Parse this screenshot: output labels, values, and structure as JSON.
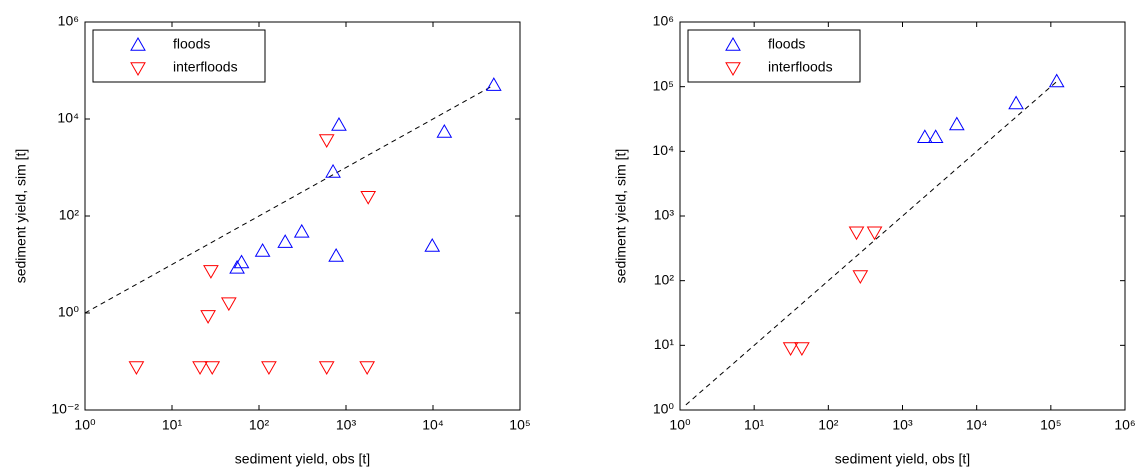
{
  "chart_data": [
    {
      "type": "scatter",
      "xlabel": "sediment yield, obs [t]",
      "ylabel": "sediment yield, sim [t]",
      "xscale": "log",
      "yscale": "log",
      "legend": "upper left",
      "xlim": [
        1,
        100000
      ],
      "ylim": [
        0.01,
        1000000
      ],
      "xticks": [
        {
          "value": 1,
          "label": "10⁰"
        },
        {
          "value": 10,
          "label": "10¹"
        },
        {
          "value": 100,
          "label": "10²"
        },
        {
          "value": 1000,
          "label": "10³"
        },
        {
          "value": 10000,
          "label": "10⁴"
        },
        {
          "value": 100000,
          "label": "10⁵"
        }
      ],
      "yticks": [
        {
          "value": 0.01,
          "label": "10⁻²"
        },
        {
          "value": 1,
          "label": "10⁰"
        },
        {
          "value": 100,
          "label": "10²"
        },
        {
          "value": 10000,
          "label": "10⁴"
        },
        {
          "value": 1000000,
          "label": "10⁶"
        }
      ],
      "series": [
        {
          "name": "floods",
          "color": "#0000ff",
          "marker": "triangle-up",
          "x": [
            50000,
            830,
            13500,
            710,
            310,
            200,
            110,
            770,
            9800,
            63,
            56
          ],
          "values": [
            50000,
            7500,
            5400,
            810,
            47,
            29,
            19,
            15,
            24,
            11,
            8.5
          ]
        },
        {
          "name": "interfloods",
          "color": "#ff0000",
          "marker": "triangle-down",
          "x": [
            600,
            1800,
            28,
            45,
            26,
            3.9,
            21,
            29,
            130,
            600,
            1750
          ],
          "values": [
            3700,
            250,
            7.4,
            1.6,
            0.87,
            0.077,
            0.077,
            0.077,
            0.077,
            0.077,
            0.077
          ]
        }
      ],
      "ref_line": {
        "x": [
          1,
          50000
        ],
        "y": [
          1,
          50000
        ]
      }
    },
    {
      "type": "scatter",
      "xlabel": "sediment yield, obs [t]",
      "ylabel": "sediment yield, sim [t]",
      "xscale": "log",
      "yscale": "log",
      "legend": "upper left",
      "xlim": [
        1,
        1000000
      ],
      "ylim": [
        1,
        1000000
      ],
      "xticks": [
        {
          "value": 1,
          "label": "10⁰"
        },
        {
          "value": 10,
          "label": "10¹"
        },
        {
          "value": 100,
          "label": "10²"
        },
        {
          "value": 1000,
          "label": "10³"
        },
        {
          "value": 10000,
          "label": "10⁴"
        },
        {
          "value": 100000,
          "label": "10⁵"
        },
        {
          "value": 1000000,
          "label": "10⁶"
        }
      ],
      "yticks": [
        {
          "value": 1,
          "label": "10⁰"
        },
        {
          "value": 10,
          "label": "10¹"
        },
        {
          "value": 100,
          "label": "10²"
        },
        {
          "value": 1000,
          "label": "10³"
        },
        {
          "value": 10000,
          "label": "10⁴"
        },
        {
          "value": 100000,
          "label": "10⁵"
        },
        {
          "value": 1000000,
          "label": "10⁶"
        }
      ],
      "series": [
        {
          "name": "floods",
          "color": "#0000ff",
          "marker": "triangle-up",
          "x": [
            120000,
            34000,
            5400,
            2000,
            2800
          ],
          "values": [
            120000,
            55000,
            26000,
            16500,
            16500
          ]
        },
        {
          "name": "interfloods",
          "color": "#ff0000",
          "marker": "triangle-down",
          "x": [
            240,
            420,
            270,
            31,
            44
          ],
          "values": [
            560,
            560,
            118,
            9.1,
            9.1
          ]
        }
      ],
      "ref_line": {
        "x": [
          1.2,
          120000
        ],
        "y": [
          1.2,
          120000
        ]
      }
    }
  ]
}
